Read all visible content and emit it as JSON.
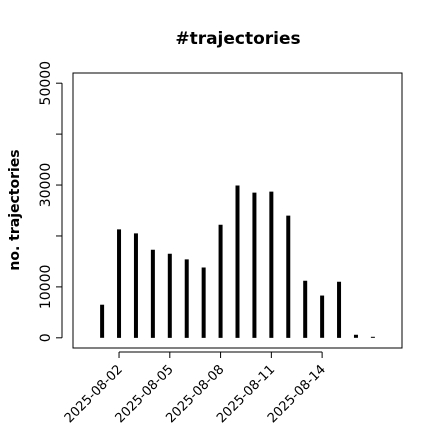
{
  "chart_data": {
    "type": "bar",
    "title": "#trajectories",
    "y_label": "no. trajectories",
    "x": [
      "2025-08-01",
      "2025-08-02",
      "2025-08-03",
      "2025-08-04",
      "2025-08-05",
      "2025-08-06",
      "2025-08-07",
      "2025-08-08",
      "2025-08-09",
      "2025-08-10",
      "2025-08-11",
      "2025-08-12",
      "2025-08-13",
      "2025-08-14",
      "2025-08-15",
      "2025-08-16",
      "2025-08-17"
    ],
    "values": [
      6500,
      21300,
      20500,
      17300,
      16500,
      15400,
      13800,
      22200,
      29900,
      28500,
      28700,
      24000,
      11200,
      8300,
      11000,
      600,
      200
    ],
    "color": "#000000",
    "ylim": [
      0,
      50000
    ],
    "yticks": [
      0,
      10000,
      {
        "value": 20000,
        "label": null
      },
      30000,
      {
        "value": 40000,
        "label": null
      },
      50000
    ],
    "xticks": [
      "2025-08-02",
      "2025-08-05",
      "2025-08-08",
      "2025-08-11",
      "2025-08-14"
    ]
  }
}
